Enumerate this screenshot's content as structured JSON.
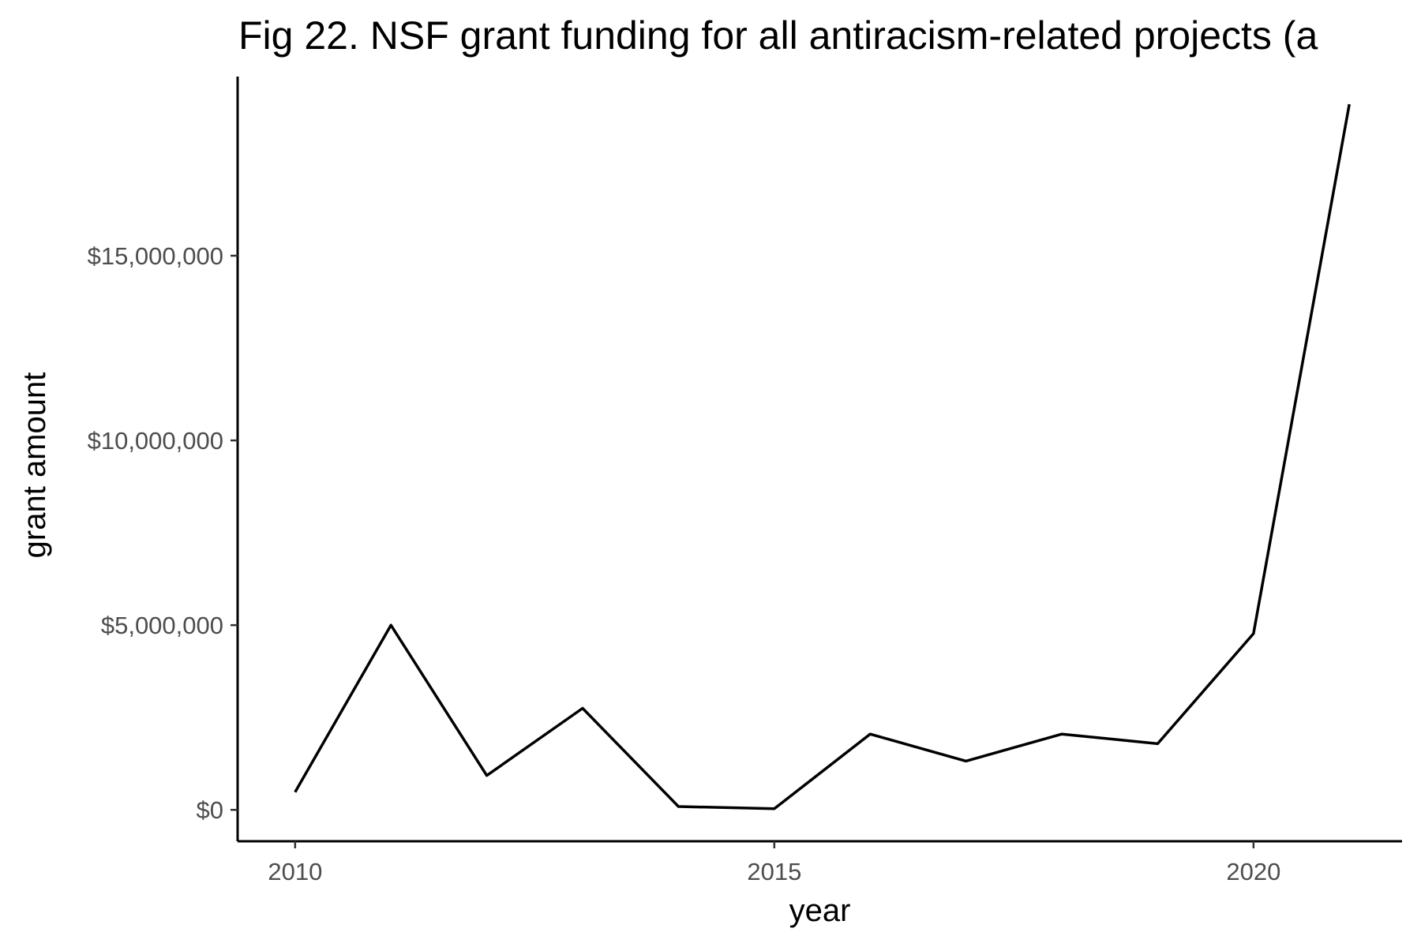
{
  "chart_data": {
    "type": "line",
    "title": "Fig 22. NSF grant funding for all antiracism-related projects (a",
    "xlabel": "year",
    "ylabel": "grant amount",
    "x": [
      2010,
      2011,
      2012,
      2013,
      2014,
      2015,
      2016,
      2017,
      2018,
      2019,
      2020,
      2021
    ],
    "series": [
      {
        "values": [
          480000,
          5000000,
          930000,
          2750000,
          90000,
          30000,
          2050000,
          1320000,
          2050000,
          1790000,
          4770000,
          19100000
        ],
        "color": "#000000"
      }
    ],
    "xlim": [
      2009.4,
      2021.55
    ],
    "ylim": [
      -850000,
      19850000
    ],
    "x_ticks": [
      2010,
      2015,
      2020
    ],
    "x_tick_labels": [
      "2010",
      "2015",
      "2020"
    ],
    "y_ticks": [
      0,
      5000000,
      10000000,
      15000000
    ],
    "y_tick_labels": [
      "$0",
      "$5,000,000",
      "$10,000,000",
      "$15,000,000"
    ],
    "grid": false,
    "legend": "none"
  }
}
